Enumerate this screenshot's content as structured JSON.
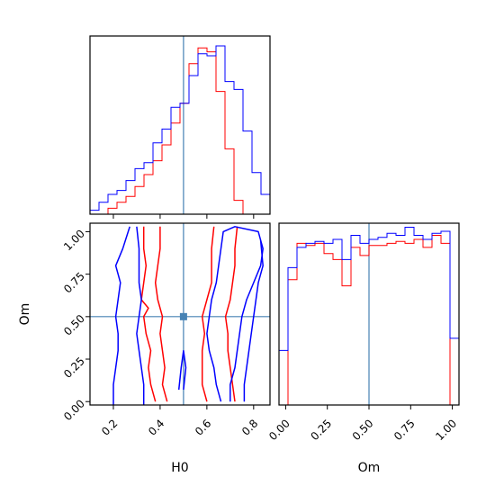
{
  "chart_data": {
    "type": "corner",
    "parameters": [
      "H0",
      "Om"
    ],
    "truths": {
      "H0": 0.5,
      "Om": 0.5
    },
    "truth_color": "#4682b4",
    "series": [
      {
        "color": "#ff0000"
      },
      {
        "color": "#0000ff"
      }
    ],
    "panels": [
      {
        "id": "hist-H0",
        "type": "histogram",
        "x": "H0",
        "xlim": [
          0.1,
          0.87
        ],
        "bin_edges": [
          0.1,
          0.1385,
          0.177,
          0.2155,
          0.254,
          0.2925,
          0.331,
          0.3695,
          0.408,
          0.4465,
          0.485,
          0.5235,
          0.562,
          0.6005,
          0.639,
          0.6775,
          0.716,
          0.7545,
          0.793,
          0.8315,
          0.87
        ],
        "series_counts": [
          {
            "series": 0,
            "counts": [
              0,
              0,
              0.03,
              0.06,
              0.09,
              0.14,
              0.2,
              0.27,
              0.35,
              0.46,
              0.56,
              0.76,
              0.84,
              0.82,
              0.62,
              0.33,
              0.07,
              0,
              0,
              0
            ]
          },
          {
            "series": 1,
            "counts": [
              0.02,
              0.06,
              0.1,
              0.12,
              0.17,
              0.23,
              0.26,
              0.36,
              0.43,
              0.54,
              0.56,
              0.7,
              0.81,
              0.8,
              0.85,
              0.67,
              0.63,
              0.42,
              0.21,
              0.1
            ]
          }
        ]
      },
      {
        "id": "hist-Om",
        "type": "histogram",
        "x": "Om",
        "xlim": [
          -0.04,
          1.04
        ],
        "bin_edges": [
          -0.04,
          0.014,
          0.068,
          0.122,
          0.176,
          0.23,
          0.284,
          0.338,
          0.392,
          0.446,
          0.5,
          0.554,
          0.608,
          0.662,
          0.716,
          0.77,
          0.824,
          0.878,
          0.932,
          0.986,
          1.04
        ],
        "series_counts": [
          {
            "series": 0,
            "counts": [
              0,
              0.62,
              0.8,
              0.79,
              0.8,
              0.75,
              0.72,
              0.59,
              0.78,
              0.74,
              0.79,
              0.79,
              0.8,
              0.81,
              0.8,
              0.82,
              0.78,
              0.84,
              0.8,
              0
            ]
          },
          {
            "series": 1,
            "counts": [
              0.27,
              0.68,
              0.78,
              0.8,
              0.81,
              0.8,
              0.82,
              0.72,
              0.84,
              0.8,
              0.82,
              0.83,
              0.85,
              0.84,
              0.88,
              0.84,
              0.82,
              0.85,
              0.86,
              0.33
            ]
          }
        ]
      },
      {
        "id": "contour-H0-Om",
        "type": "contour",
        "x": "H0",
        "y": "Om",
        "xlim": [
          0.1,
          0.87
        ],
        "ylim": [
          -0.02,
          1.05
        ],
        "contours": [
          {
            "series": 0,
            "points": [
              [
                0.38,
                0.0
              ],
              [
                0.36,
                0.1
              ],
              [
                0.35,
                0.2
              ],
              [
                0.36,
                0.3
              ],
              [
                0.34,
                0.4
              ],
              [
                0.33,
                0.5
              ],
              [
                0.35,
                0.55
              ],
              [
                0.32,
                0.6
              ],
              [
                0.33,
                0.7
              ],
              [
                0.34,
                0.8
              ],
              [
                0.33,
                0.9
              ],
              [
                0.33,
                1.03
              ]
            ]
          },
          {
            "series": 0,
            "points": [
              [
                0.43,
                0.0
              ],
              [
                0.41,
                0.1
              ],
              [
                0.42,
                0.2
              ],
              [
                0.41,
                0.3
              ],
              [
                0.4,
                0.4
              ],
              [
                0.41,
                0.5
              ],
              [
                0.39,
                0.6
              ],
              [
                0.38,
                0.7
              ],
              [
                0.39,
                0.8
              ],
              [
                0.4,
                0.9
              ],
              [
                0.4,
                1.03
              ]
            ]
          },
          {
            "series": 0,
            "points": [
              [
                0.6,
                0.0
              ],
              [
                0.58,
                0.1
              ],
              [
                0.58,
                0.2
              ],
              [
                0.58,
                0.3
              ],
              [
                0.59,
                0.4
              ],
              [
                0.58,
                0.5
              ],
              [
                0.6,
                0.6
              ],
              [
                0.62,
                0.7
              ],
              [
                0.62,
                0.8
              ],
              [
                0.62,
                0.9
              ],
              [
                0.63,
                1.03
              ]
            ]
          },
          {
            "series": 0,
            "points": [
              [
                0.72,
                0.0
              ],
              [
                0.71,
                0.1
              ],
              [
                0.7,
                0.2
              ],
              [
                0.69,
                0.3
              ],
              [
                0.69,
                0.4
              ],
              [
                0.68,
                0.5
              ],
              [
                0.7,
                0.6
              ],
              [
                0.71,
                0.7
              ],
              [
                0.72,
                0.8
              ],
              [
                0.72,
                0.9
              ],
              [
                0.73,
                1.03
              ]
            ]
          },
          {
            "series": 1,
            "points": [
              [
                0.2,
                -0.02
              ],
              [
                0.2,
                0.1
              ],
              [
                0.21,
                0.2
              ],
              [
                0.22,
                0.3
              ],
              [
                0.22,
                0.4
              ],
              [
                0.21,
                0.5
              ],
              [
                0.22,
                0.6
              ],
              [
                0.23,
                0.7
              ],
              [
                0.21,
                0.8
              ],
              [
                0.24,
                0.9
              ],
              [
                0.27,
                1.03
              ]
            ]
          },
          {
            "series": 1,
            "points": [
              [
                0.33,
                -0.02
              ],
              [
                0.33,
                0.1
              ],
              [
                0.32,
                0.2
              ],
              [
                0.31,
                0.3
              ],
              [
                0.3,
                0.4
              ],
              [
                0.31,
                0.5
              ],
              [
                0.32,
                0.6
              ],
              [
                0.31,
                0.7
              ],
              [
                0.31,
                0.8
              ],
              [
                0.31,
                0.9
              ],
              [
                0.3,
                1.03
              ]
            ]
          },
          {
            "series": 1,
            "points": [
              [
                0.48,
                0.07
              ],
              [
                0.49,
                0.2
              ],
              [
                0.5,
                0.3
              ],
              [
                0.51,
                0.2
              ],
              [
                0.5,
                0.07
              ]
            ]
          },
          {
            "series": 1,
            "points": [
              [
                0.66,
                0.0
              ],
              [
                0.64,
                0.1
              ],
              [
                0.63,
                0.2
              ],
              [
                0.61,
                0.3
              ],
              [
                0.6,
                0.4
              ],
              [
                0.61,
                0.5
              ],
              [
                0.62,
                0.6
              ],
              [
                0.64,
                0.7
              ],
              [
                0.65,
                0.8
              ],
              [
                0.66,
                0.9
              ],
              [
                0.67,
                1.0
              ],
              [
                0.72,
                1.03
              ],
              [
                0.82,
                1.0
              ],
              [
                0.84,
                0.9
              ],
              [
                0.83,
                0.8
              ],
              [
                0.8,
                0.7
              ],
              [
                0.77,
                0.6
              ],
              [
                0.75,
                0.5
              ],
              [
                0.74,
                0.4
              ],
              [
                0.73,
                0.3
              ],
              [
                0.72,
                0.2
              ],
              [
                0.7,
                0.1
              ],
              [
                0.7,
                0.0
              ]
            ]
          },
          {
            "series": 1,
            "points": [
              [
                0.83,
                0.95
              ],
              [
                0.84,
                0.8
              ],
              [
                0.82,
                0.7
              ],
              [
                0.81,
                0.6
              ],
              [
                0.8,
                0.5
              ],
              [
                0.79,
                0.4
              ],
              [
                0.78,
                0.3
              ],
              [
                0.77,
                0.2
              ],
              [
                0.76,
                0.1
              ],
              [
                0.76,
                0.0
              ]
            ]
          }
        ]
      }
    ],
    "axes": {
      "hist-H0": {
        "xticks": [
          0.2,
          0.4,
          0.6,
          0.8
        ],
        "xticklabels": [],
        "yticks": [],
        "yticklabels": [],
        "xlabel": "",
        "ylabel": ""
      },
      "contour-H0-Om": {
        "xticks": [
          0.2,
          0.4,
          0.6,
          0.8
        ],
        "xticklabels": [
          "0.2",
          "0.4",
          "0.6",
          "0.8"
        ],
        "yticks": [
          0,
          0.25,
          0.5,
          0.75,
          1.0
        ],
        "yticklabels": [
          "0.00",
          "0.25",
          "0.50",
          "0.75",
          "1.00"
        ],
        "xlabel": "H0",
        "ylabel": "Om"
      },
      "hist-Om": {
        "xticks": [
          0,
          0.25,
          0.5,
          0.75,
          1.0
        ],
        "xticklabels": [
          "0.00",
          "0.25",
          "0.50",
          "0.75",
          "1.00"
        ],
        "yticks": [],
        "yticklabels": [],
        "xlabel": "Om",
        "ylabel": ""
      }
    }
  }
}
